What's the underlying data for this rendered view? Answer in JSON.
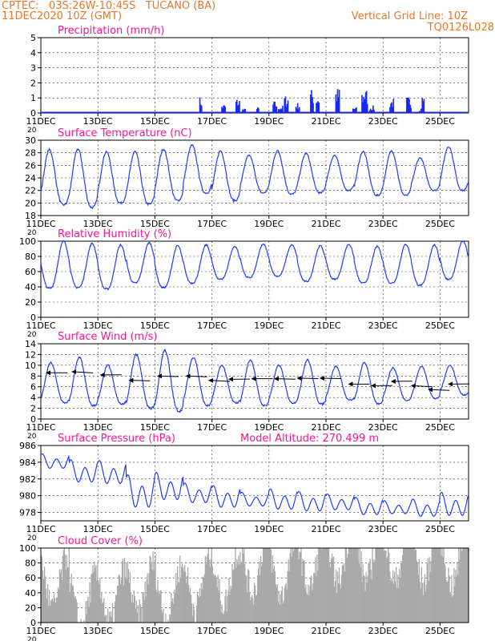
{
  "header": {
    "line1": "CPTEC:   03S:26W-10:45S   TUCANO (BA)",
    "line2": "11DEC2020 10Z (GMT)",
    "right1": "Vertical Grid Line: 10Z",
    "right2": "TQ0126L028"
  },
  "colors": {
    "header": "#e8782a",
    "title": "#ff1493",
    "series": "#1e3cff",
    "bars_precip": "#1428ff",
    "cloud": "#a9a9a9",
    "wind_arrow": "#000000"
  },
  "x_axis": {
    "start": "2020-12-11",
    "end": "2020-12-26",
    "ticks": [
      "11DEC",
      "13DEC",
      "15DEC",
      "17DEC",
      "19DEC",
      "21DEC",
      "23DEC",
      "25DEC"
    ],
    "tick_days": [
      0,
      2,
      4,
      6,
      8,
      10,
      12,
      14
    ],
    "year_fragment": "20"
  },
  "chart_data": [
    {
      "type": "bar",
      "title": "Precipitation (mm/h)",
      "ylim": [
        0,
        5
      ],
      "yticks": [
        "0",
        "1",
        "2",
        "3",
        "4",
        "5"
      ],
      "x": [
        5.6,
        6.4,
        6.9,
        7.1,
        7.6,
        8.2,
        8.4,
        8.6,
        9.0,
        9.5,
        9.7,
        10.4,
        11.0,
        11.3,
        11.4,
        11.6,
        12.3,
        12.9,
        13.3,
        13.4
      ],
      "values": [
        1.1,
        0.6,
        1.0,
        0.3,
        0.4,
        0.8,
        0.5,
        1.2,
        0.7,
        1.6,
        1.3,
        1.7,
        0.4,
        1.5,
        1.6,
        0.5,
        1.0,
        1.1,
        0.4,
        1.2
      ]
    },
    {
      "type": "line",
      "title": "Surface Temperature (nC)",
      "ylim": [
        18,
        30
      ],
      "yticks": [
        "18",
        "20",
        "22",
        "24",
        "26",
        "28",
        "30"
      ],
      "daily_max": [
        28.5,
        28.6,
        28.2,
        28.2,
        28.6,
        29.2,
        28.3,
        27.6,
        28.3,
        27.9,
        27.6,
        28.2,
        28.3,
        27.2,
        29.0
      ],
      "daily_min": [
        19.7,
        19.3,
        20.0,
        19.8,
        20.4,
        21.6,
        20.4,
        21.6,
        21.4,
        21.6,
        22.0,
        21.2,
        21.2,
        22.0,
        22.0
      ]
    },
    {
      "type": "line",
      "title": "Relative Humidity (%)",
      "ylim": [
        0,
        100
      ],
      "yticks": [
        "0",
        "20",
        "40",
        "60",
        "80",
        "100"
      ],
      "daily_max": [
        100,
        97,
        95,
        98,
        94,
        95,
        93,
        96,
        95,
        94,
        96,
        93,
        96,
        95,
        100
      ],
      "daily_min": [
        38,
        39,
        37,
        45,
        39,
        45,
        50,
        52,
        54,
        47,
        50,
        45,
        45,
        42,
        50
      ]
    },
    {
      "type": "line",
      "title": "Surface Wind (m/s)",
      "ylim": [
        0,
        14
      ],
      "yticks": [
        "0",
        "2",
        "4",
        "6",
        "8",
        "10",
        "12",
        "14"
      ],
      "daily_max": [
        10.5,
        11.5,
        10.0,
        12.0,
        12.8,
        11.5,
        10.0,
        11.0,
        10.0,
        11.0,
        9.8,
        10.5,
        9.5,
        9.8,
        10.0
      ],
      "daily_min": [
        3.0,
        2.5,
        2.8,
        2.0,
        1.5,
        2.5,
        3.0,
        2.5,
        3.0,
        2.8,
        3.5,
        2.8,
        3.5,
        3.8,
        4.5
      ],
      "vectors": [
        {
          "day": 0.2,
          "speed": 8.6
        },
        {
          "day": 1.1,
          "speed": 8.8
        },
        {
          "day": 2.1,
          "speed": 8.2
        },
        {
          "day": 3.1,
          "speed": 7.2
        },
        {
          "day": 4.1,
          "speed": 8.0
        },
        {
          "day": 5.1,
          "speed": 8.0
        },
        {
          "day": 5.9,
          "speed": 7.2
        },
        {
          "day": 6.6,
          "speed": 7.4
        },
        {
          "day": 7.4,
          "speed": 7.5
        },
        {
          "day": 8.2,
          "speed": 7.5
        },
        {
          "day": 9.0,
          "speed": 7.6
        },
        {
          "day": 9.8,
          "speed": 7.6
        },
        {
          "day": 10.8,
          "speed": 6.5
        },
        {
          "day": 11.6,
          "speed": 6.2
        },
        {
          "day": 12.3,
          "speed": 7.0
        },
        {
          "day": 13.0,
          "speed": 6.2
        },
        {
          "day": 13.6,
          "speed": 5.5
        },
        {
          "day": 14.3,
          "speed": 6.5
        }
      ]
    },
    {
      "type": "line",
      "title": "Surface Pressure (hPa)",
      "annotation": "Model Altitude: 270.499  m",
      "ylim": [
        977,
        986
      ],
      "yticks": [
        "978",
        "980",
        "982",
        "984",
        "986"
      ],
      "daily_max": [
        985.0,
        984.3,
        984.2,
        982.5,
        982.8,
        981.5,
        981.2,
        980.4,
        980.8,
        980.5,
        980.2,
        979.8,
        979.4,
        979.6,
        980.4
      ],
      "daily_min": [
        983.0,
        981.2,
        981.0,
        978.0,
        979.0,
        978.8,
        978.2,
        978.5,
        978.0,
        977.8,
        978.0,
        977.4,
        977.6,
        977.2,
        977.2
      ]
    },
    {
      "type": "area",
      "title": "Cloud Cover (%)",
      "ylim": [
        0,
        100
      ],
      "yticks": [
        "0",
        "20",
        "40",
        "60",
        "80",
        "100"
      ],
      "daily_mean": [
        55,
        30,
        35,
        45,
        40,
        55,
        60,
        75,
        70,
        80,
        90,
        92,
        90,
        88,
        85
      ]
    }
  ]
}
